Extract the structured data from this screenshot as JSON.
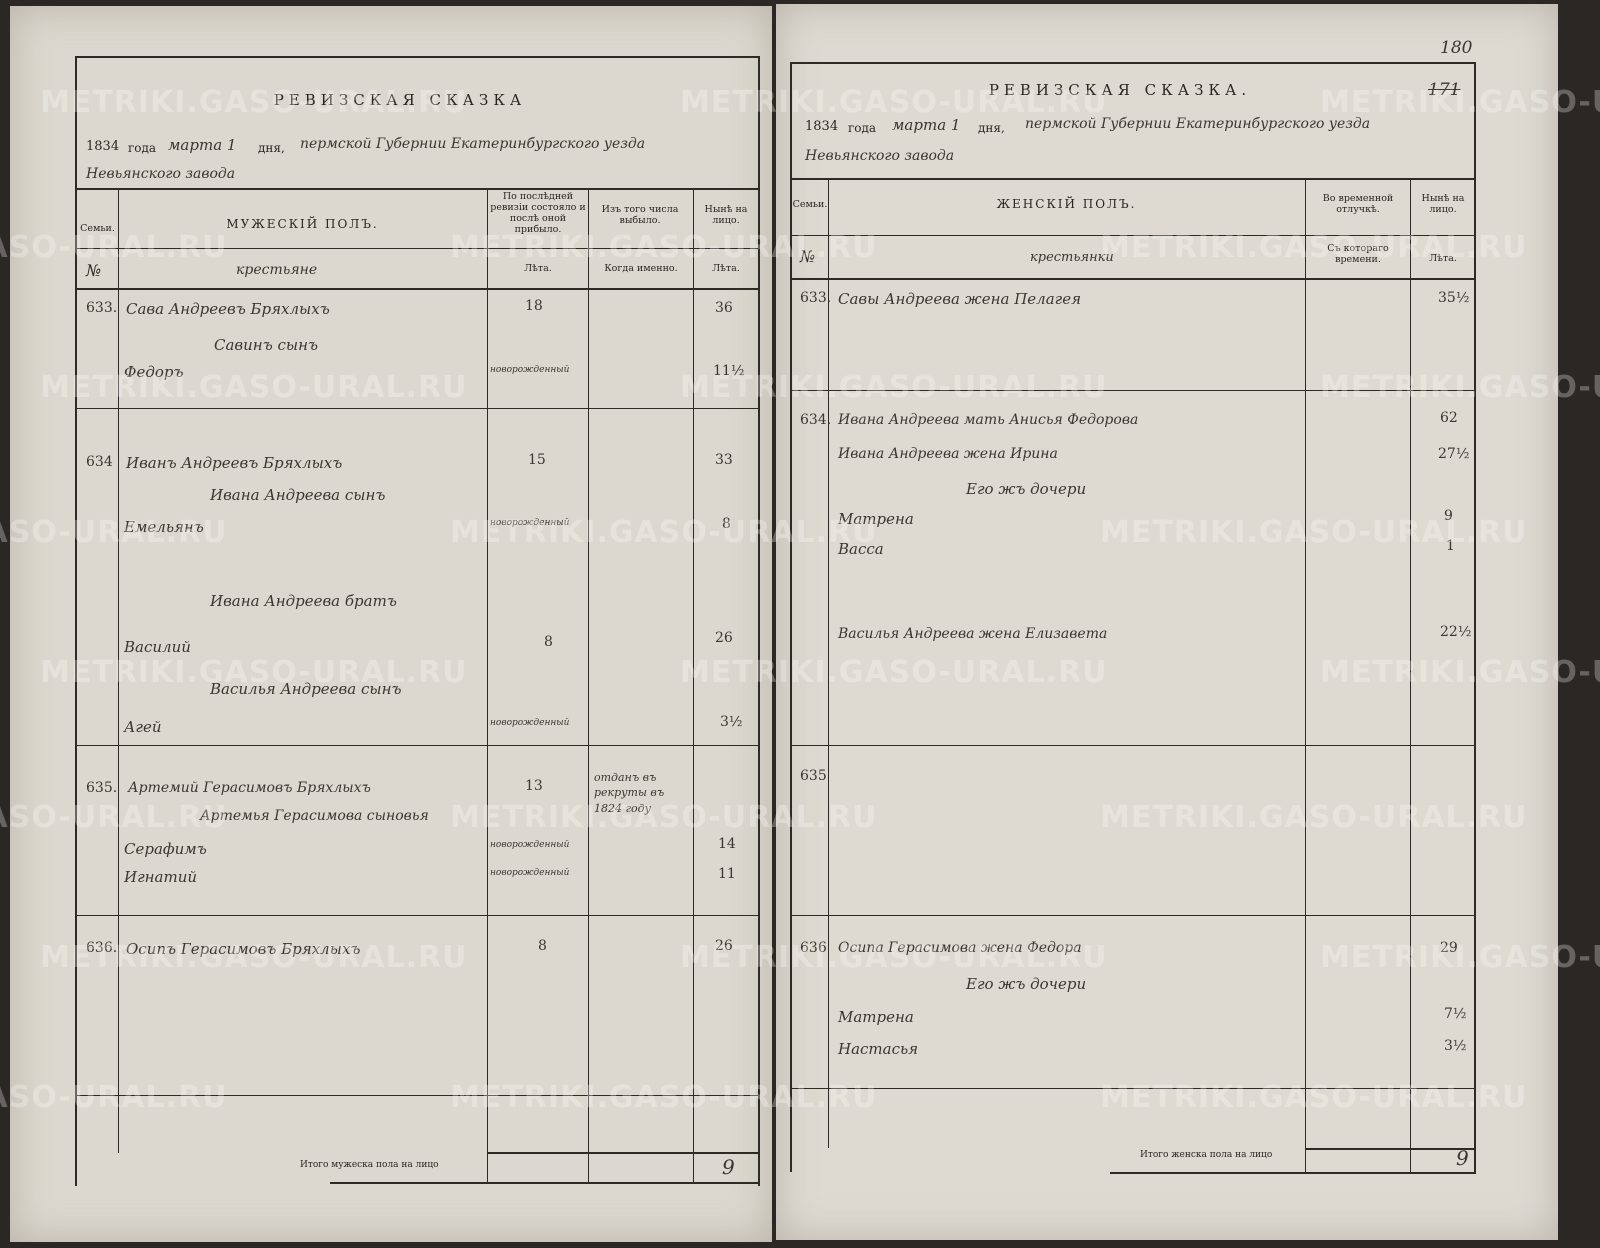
{
  "watermark": "METRIKI.GASO-URAL.RU",
  "left": {
    "title": "РЕВИЗСКАЯ СКАЗКА",
    "year": "1834",
    "year_word": "года",
    "month": "марта 1",
    "day_word": "дня,",
    "place": "пермской Губернии Екатеринбургского уезда",
    "place2": "Невьянского завода",
    "headers": {
      "family": "Семьи.",
      "section": "МУЖЕСКІЙ ПОЛЪ.",
      "col_prev": "По послѣдней ревизіи состояло и послѣ оной прибыло.",
      "col_left": "Изъ того числа выбыло.",
      "col_now": "Нынѣ на лицо.",
      "no": "№",
      "estate": "крестьяне",
      "years1": "Лѣта.",
      "when": "Когда именно.",
      "years2": "Лѣта."
    },
    "rows": [
      {
        "fam": "633.",
        "name": "Сава Андреевъ Бряхлыхъ",
        "prev": "18",
        "now": "36"
      },
      {
        "name": "Савинъ сынъ"
      },
      {
        "name": "Федоръ",
        "prev": "новорожденный",
        "now": "11½"
      },
      {
        "fam": "634",
        "name": "Иванъ Андреевъ Бряхлыхъ",
        "prev": "15",
        "now": "33"
      },
      {
        "name": "Ивана Андреева сынъ"
      },
      {
        "name": "Емельянъ",
        "prev": "новорожденный",
        "now": "8"
      },
      {
        "name": "Ивана Андреева братъ"
      },
      {
        "name": "Василий",
        "prev": "8",
        "now": "26"
      },
      {
        "name": "Василья Андреева сынъ"
      },
      {
        "name": "Агей",
        "prev": "новорожденный",
        "now": "3½"
      },
      {
        "fam": "635.",
        "name": "Артемий Герасимовъ Бряхлыхъ",
        "prev": "13",
        "left": "отданъ въ рекруты въ 1824 году"
      },
      {
        "name": "Артемья Герасимова сыновья"
      },
      {
        "name": "Серафимъ",
        "prev": "новорожденный",
        "now": "14"
      },
      {
        "name": "Игнатий",
        "prev": "новорожденный",
        "now": "11"
      },
      {
        "fam": "636.",
        "name": "Осипъ Герасимовъ Бряхлыхъ",
        "prev": "8",
        "now": "26"
      }
    ],
    "total_label": "Итого мужеска пола на лицо",
    "total": "9"
  },
  "right": {
    "page_number": "180",
    "old_page_number": "171",
    "title": "РЕВИЗСКАЯ СКАЗКА.",
    "year": "1834",
    "year_word": "года",
    "month": "марта 1",
    "day_word": "дня,",
    "place": "пермской Губернии Екатеринбургского уезда",
    "place2": "Невьянского завода",
    "headers": {
      "family": "Семьи.",
      "section": "ЖЕНСКІЙ ПОЛЪ.",
      "col_temp": "Во временной отлучкѣ.",
      "col_now": "Нынѣ на лицо.",
      "no": "№",
      "estate": "крестьянки",
      "since": "Съ котораго времени.",
      "years": "Лѣта."
    },
    "rows": [
      {
        "fam": "633.",
        "name": "Савы Андреева жена Пелагея",
        "now": "35½"
      },
      {
        "fam": "634.",
        "name": "Ивана Андреева мать Анисья Федорова",
        "now": "62"
      },
      {
        "name": "Ивана Андреева жена Ирина",
        "now": "27½"
      },
      {
        "name": "Его жъ дочери"
      },
      {
        "name": "Матрена",
        "now": "9"
      },
      {
        "name": "Васса",
        "now": "1"
      },
      {
        "name": "Василья Андреева жена Елизавета",
        "now": "22½"
      },
      {
        "fam": "635"
      },
      {
        "fam": "636",
        "name": "Осипа Герасимова жена Федора",
        "now": "29"
      },
      {
        "name": "Его жъ дочери"
      },
      {
        "name": "Матрена",
        "now": "7½"
      },
      {
        "name": "Настасья",
        "now": "3½"
      }
    ],
    "total_label": "Итого женска пола на лицо",
    "total": "9"
  }
}
